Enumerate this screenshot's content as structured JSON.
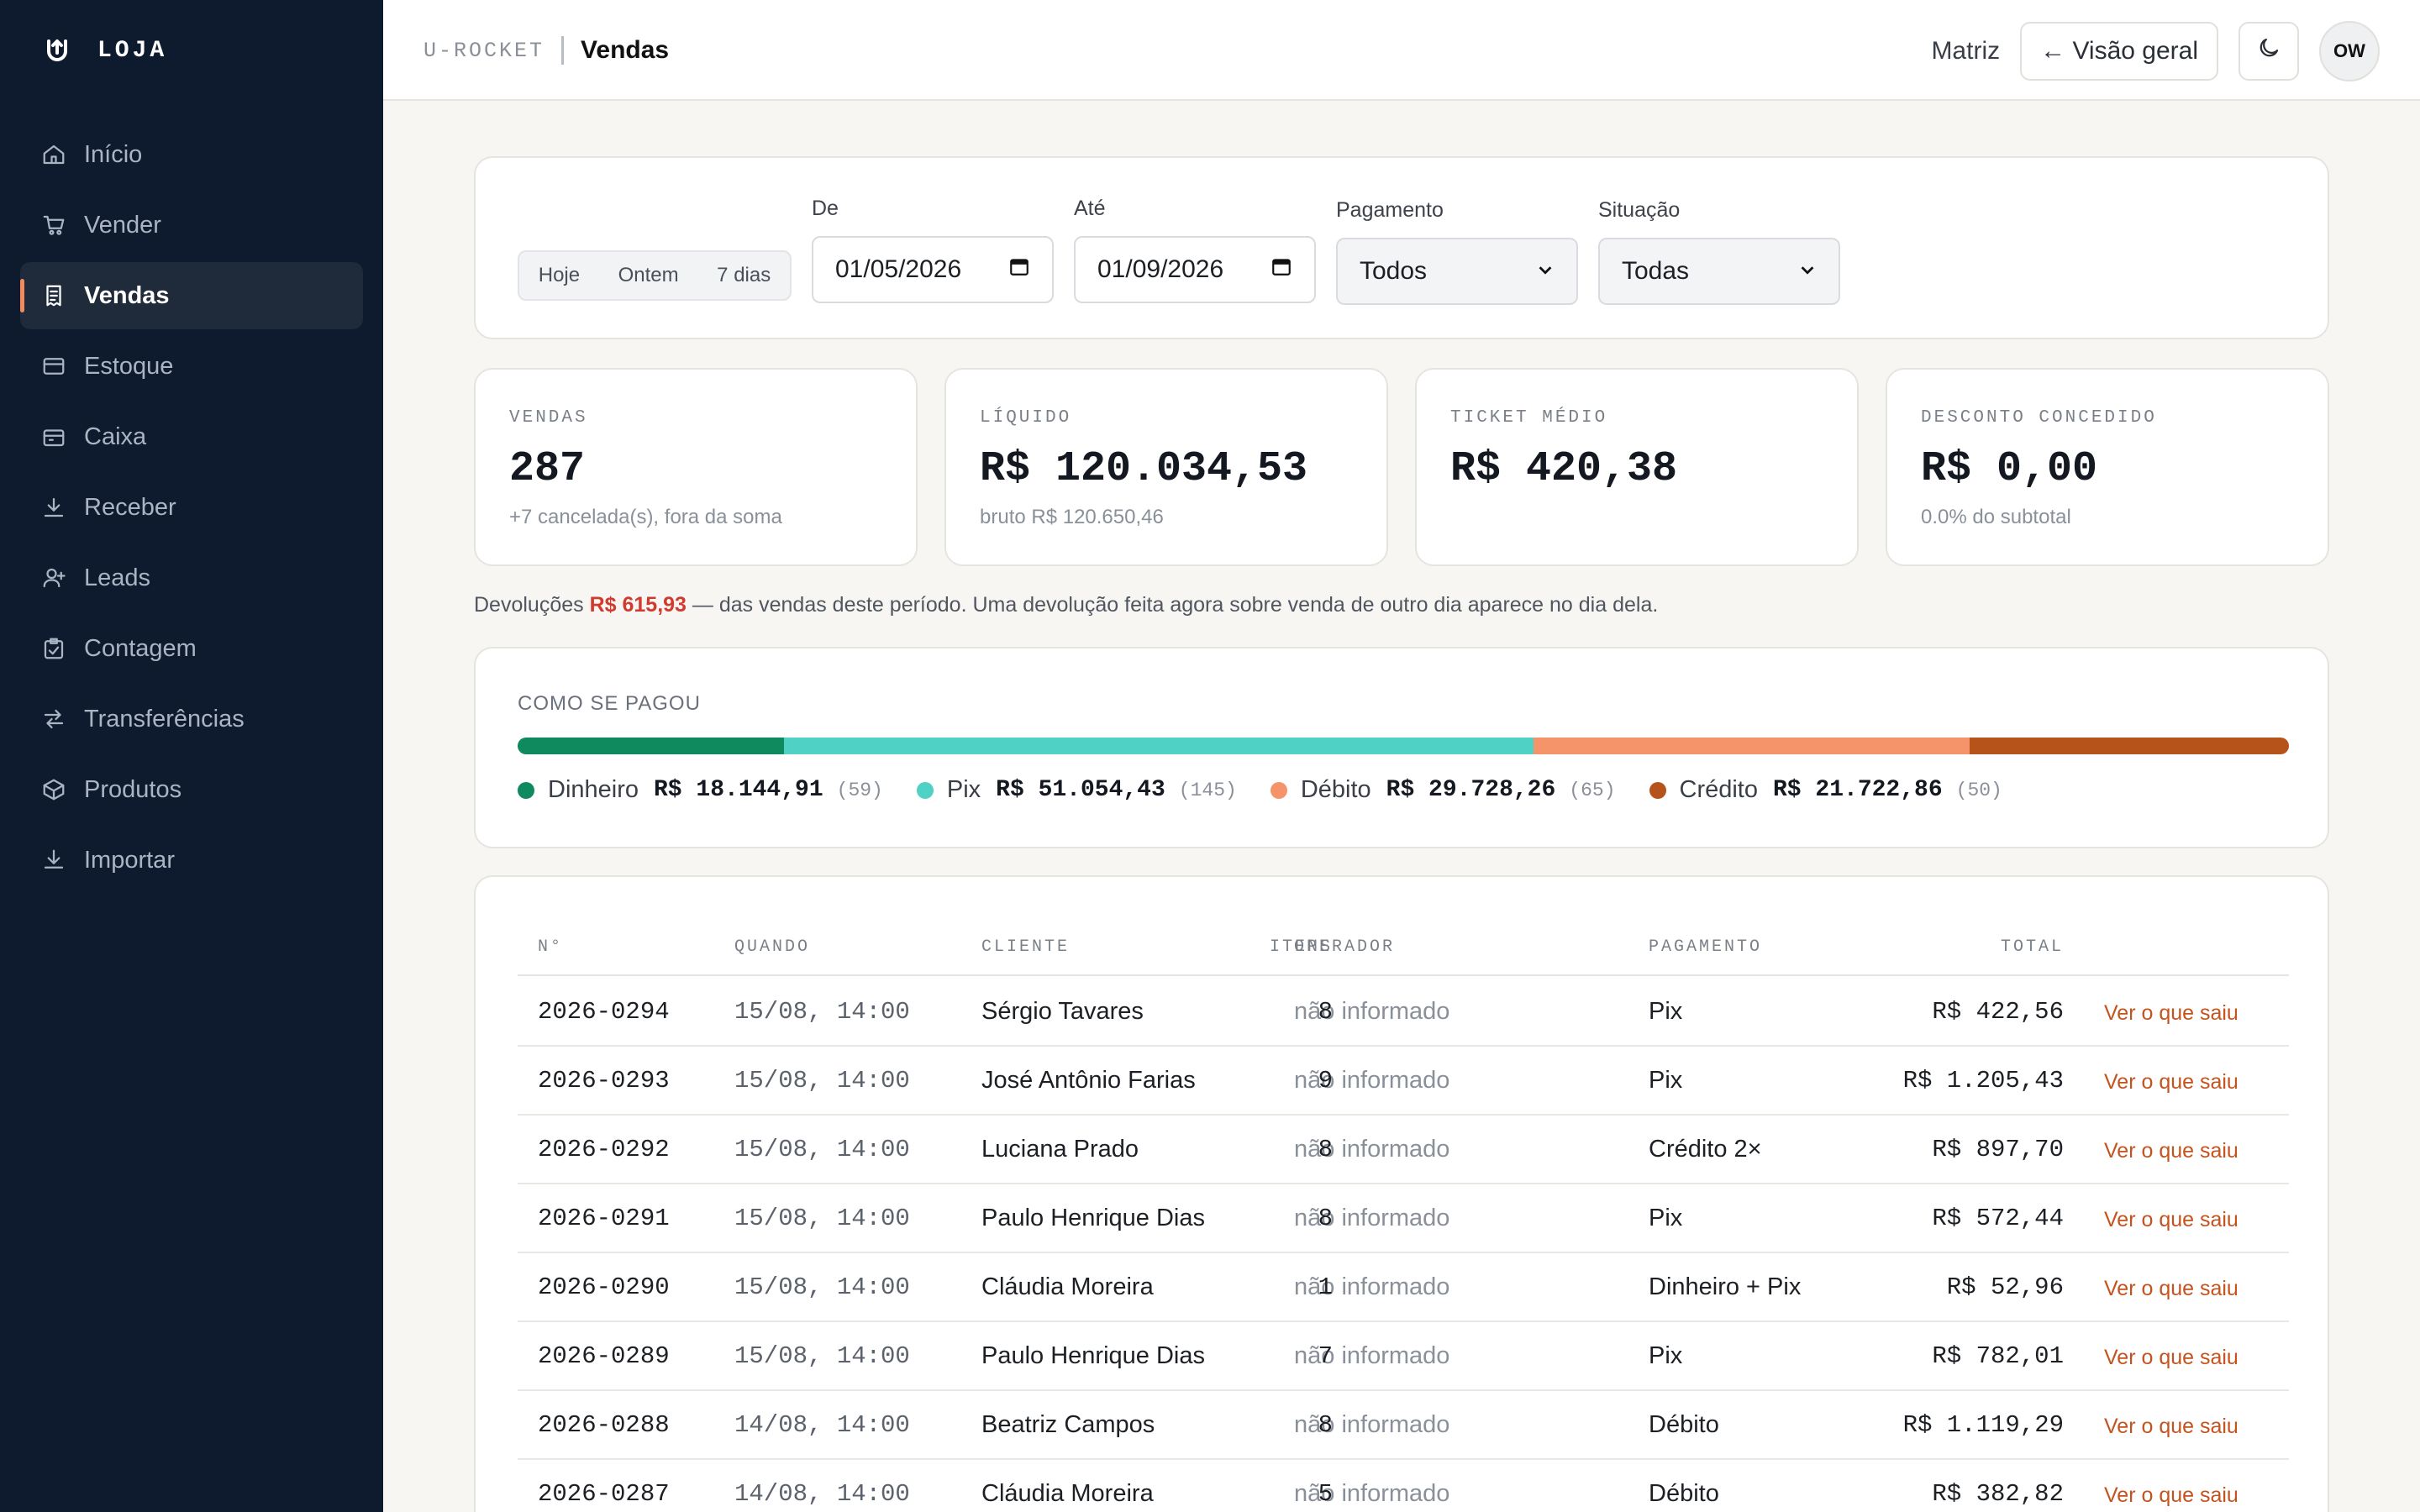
{
  "sidebar": {
    "brand": "LOJA",
    "items": [
      {
        "label": "Início",
        "icon": "home-icon"
      },
      {
        "label": "Vender",
        "icon": "cart-icon"
      },
      {
        "label": "Vendas",
        "icon": "receipt-icon",
        "active": true
      },
      {
        "label": "Estoque",
        "icon": "box-icon"
      },
      {
        "label": "Caixa",
        "icon": "register-icon"
      },
      {
        "label": "Receber",
        "icon": "download-icon"
      },
      {
        "label": "Leads",
        "icon": "user-plus-icon"
      },
      {
        "label": "Contagem",
        "icon": "clipboard-check-icon"
      },
      {
        "label": "Transferências",
        "icon": "transfer-icon"
      },
      {
        "label": "Produtos",
        "icon": "package-icon"
      },
      {
        "label": "Importar",
        "icon": "import-icon"
      }
    ]
  },
  "header": {
    "brand": "U-ROCKET",
    "page": "Vendas",
    "branch": "Matriz",
    "back_label": "← Visão geral",
    "avatar": "OW"
  },
  "filters": {
    "quick": [
      "Hoje",
      "Ontem",
      "7 dias"
    ],
    "from_label": "De",
    "from_value": "01/05/2026",
    "to_label": "Até",
    "to_value": "01/09/2026",
    "payment_label": "Pagamento",
    "payment_value": "Todos",
    "status_label": "Situação",
    "status_value": "Todas"
  },
  "stats": [
    {
      "label": "VENDAS",
      "value": "287",
      "sub": "+7 cancelada(s), fora da soma"
    },
    {
      "label": "LÍQUIDO",
      "value": "R$ 120.034,53",
      "sub": "bruto R$ 120.650,46"
    },
    {
      "label": "TICKET MÉDIO",
      "value": "R$ 420,38",
      "sub": ""
    },
    {
      "label": "DESCONTO CONCEDIDO",
      "value": "R$ 0,00",
      "sub": "0.0% do subtotal"
    }
  ],
  "returns": {
    "prefix": "Devoluções",
    "amount": "R$ 615,93",
    "suffix": "— das vendas deste período. Uma devolução feita agora sobre venda de outro dia aparece no dia dela."
  },
  "payments": {
    "title": "COMO SE PAGOU",
    "methods": [
      {
        "name": "Dinheiro",
        "amount": "R$ 18.144,91",
        "count": "(59)",
        "share": 0.1512,
        "color": "#0f8a5f"
      },
      {
        "name": "Pix",
        "amount": "R$ 51.054,43",
        "count": "(145)",
        "share": 0.4253,
        "color": "#4fd1c5"
      },
      {
        "name": "Débito",
        "amount": "R$ 29.728,26",
        "count": "(65)",
        "share": 0.2477,
        "color": "#f5946a"
      },
      {
        "name": "Crédito",
        "amount": "R$ 21.722,86",
        "count": "(50)",
        "share": 0.181,
        "color": "#b5531a"
      }
    ]
  },
  "table": {
    "columns": [
      "N°",
      "QUANDO",
      "CLIENTE",
      "OPERADOR",
      "ITENS",
      "PAGAMENTO",
      "TOTAL"
    ],
    "link_label": "Ver o que saiu",
    "rows": [
      {
        "num": "2026-0294",
        "when": "15/08, 14:00",
        "client": "Sérgio Tavares",
        "operator": "não informado",
        "items": "8",
        "payment": "Pix",
        "total": "R$ 422,56"
      },
      {
        "num": "2026-0293",
        "when": "15/08, 14:00",
        "client": "José Antônio Farias",
        "operator": "não informado",
        "items": "9",
        "payment": "Pix",
        "total": "R$ 1.205,43"
      },
      {
        "num": "2026-0292",
        "when": "15/08, 14:00",
        "client": "Luciana Prado",
        "operator": "não informado",
        "items": "8",
        "payment": "Crédito 2×",
        "total": "R$ 897,70"
      },
      {
        "num": "2026-0291",
        "when": "15/08, 14:00",
        "client": "Paulo Henrique Dias",
        "operator": "não informado",
        "items": "8",
        "payment": "Pix",
        "total": "R$ 572,44"
      },
      {
        "num": "2026-0290",
        "when": "15/08, 14:00",
        "client": "Cláudia Moreira",
        "operator": "não informado",
        "items": "1",
        "payment": "Dinheiro + Pix",
        "total": "R$ 52,96"
      },
      {
        "num": "2026-0289",
        "when": "15/08, 14:00",
        "client": "Paulo Henrique Dias",
        "operator": "não informado",
        "items": "7",
        "payment": "Pix",
        "total": "R$ 782,01"
      },
      {
        "num": "2026-0288",
        "when": "14/08, 14:00",
        "client": "Beatriz Campos",
        "operator": "não informado",
        "items": "8",
        "payment": "Débito",
        "total": "R$ 1.119,29"
      },
      {
        "num": "2026-0287",
        "when": "14/08, 14:00",
        "client": "Cláudia Moreira",
        "operator": "não informado",
        "items": "5",
        "payment": "Débito",
        "total": "R$ 382,82"
      }
    ]
  }
}
